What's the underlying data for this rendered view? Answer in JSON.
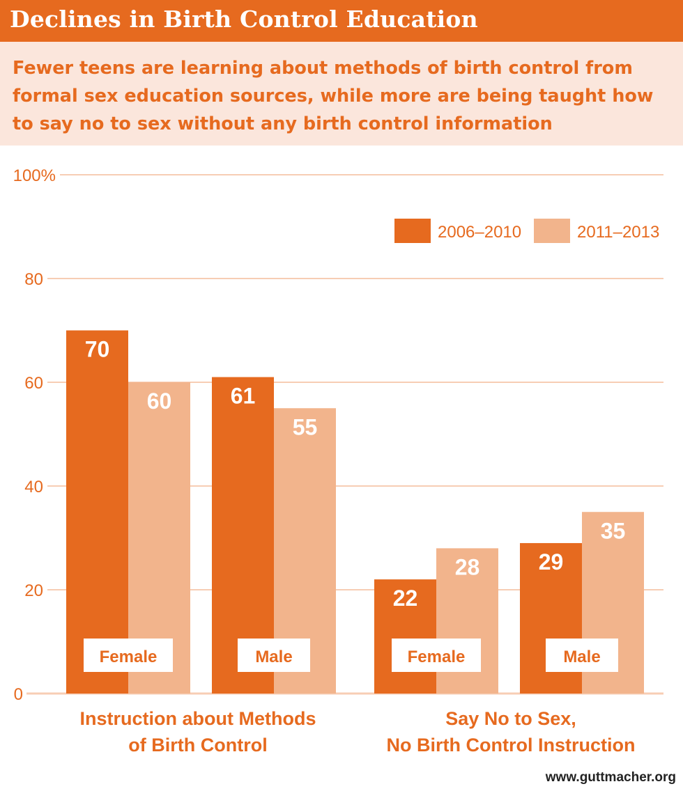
{
  "header": {
    "title": "Declines in Birth Control Education",
    "subtitle": "Fewer teens are learning about methods of birth control from formal sex education sources, while more are being taught how to say no to sex without any birth control information"
  },
  "source": "www.guttmacher.org",
  "colors": {
    "accent": "#e66a1f",
    "light": "#f2b48c",
    "grid": "#f7cdb4",
    "band": "#fbe6dc"
  },
  "chart_data": {
    "type": "bar",
    "title": "Declines in Birth Control Education",
    "xlabel": "",
    "ylabel": "",
    "ylim": [
      0,
      100
    ],
    "yticks": [
      {
        "value": 0,
        "label": "0"
      },
      {
        "value": 20,
        "label": "20"
      },
      {
        "value": 40,
        "label": "40"
      },
      {
        "value": 60,
        "label": "60"
      },
      {
        "value": 80,
        "label": "80"
      },
      {
        "value": 100,
        "label": "100%"
      }
    ],
    "grid": true,
    "legend_position": "top-right",
    "groups": [
      {
        "label_line1": "Instruction about Methods",
        "label_line2": "of Birth Control",
        "categories": [
          "Female",
          "Male"
        ]
      },
      {
        "label_line1": "Say No to Sex,",
        "label_line2": "No Birth Control Instruction",
        "categories": [
          "Female",
          "Male"
        ]
      }
    ],
    "categories": [
      "Female",
      "Male",
      "Female",
      "Male"
    ],
    "series": [
      {
        "name": "2006–2010",
        "color": "#e66a1f",
        "values": [
          70,
          61,
          22,
          29
        ]
      },
      {
        "name": "2011–2013",
        "color": "#f2b48c",
        "values": [
          60,
          55,
          28,
          35
        ]
      }
    ]
  }
}
